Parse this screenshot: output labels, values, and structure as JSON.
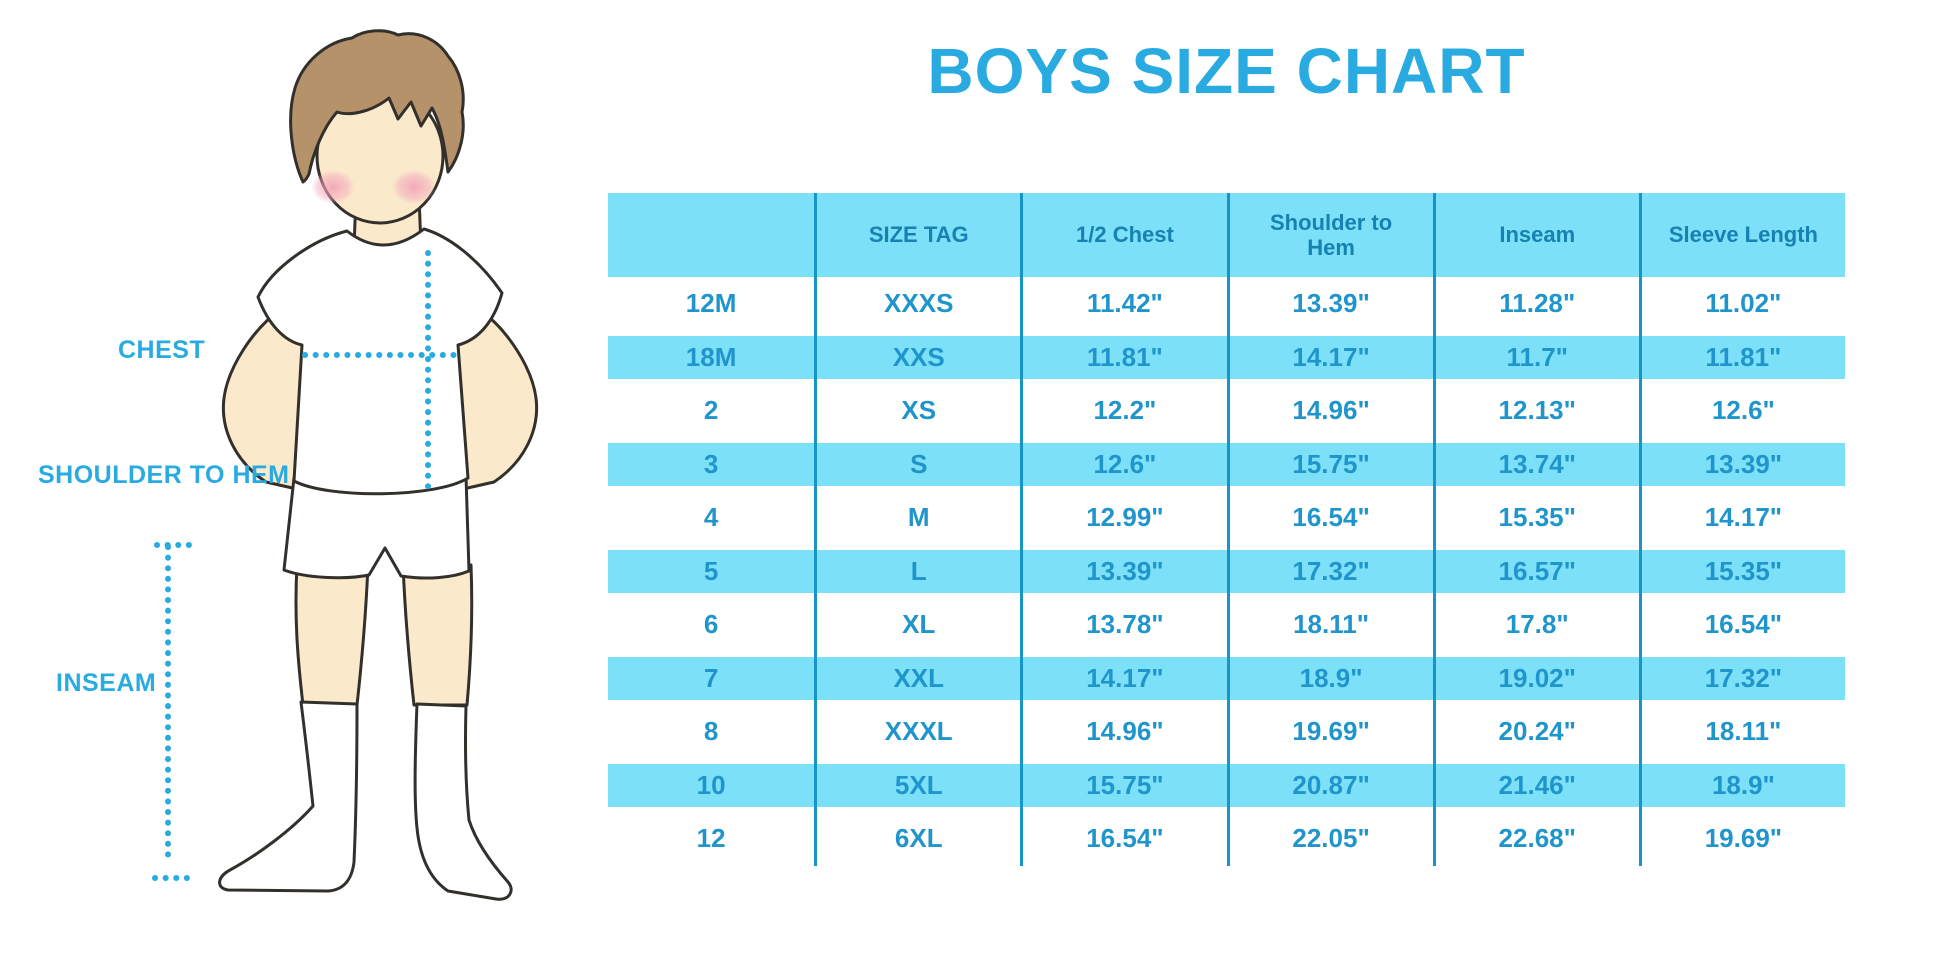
{
  "title": "BOYS SIZE CHART",
  "illustration": {
    "name": "boy-with-measurement-lines",
    "labels": {
      "chest": "CHEST",
      "shoulder_to_hem": "SHOULDER TO HEM",
      "inseam": "INSEAM"
    }
  },
  "chart_data": {
    "type": "table",
    "title": "BOYS SIZE CHART",
    "columns": [
      "",
      "SIZE TAG",
      "1/2 Chest",
      "Shoulder to Hem",
      "Inseam",
      "Sleeve Length"
    ],
    "rows": [
      [
        "12M",
        "XXXS",
        "11.42\"",
        "13.39\"",
        "11.28\"",
        "11.02\""
      ],
      [
        "18M",
        "XXS",
        "11.81\"",
        "14.17\"",
        "11.7\"",
        "11.81\""
      ],
      [
        "2",
        "XS",
        "12.2\"",
        "14.96\"",
        "12.13\"",
        "12.6\""
      ],
      [
        "3",
        "S",
        "12.6\"",
        "15.75\"",
        "13.74\"",
        "13.39\""
      ],
      [
        "4",
        "M",
        "12.99\"",
        "16.54\"",
        "15.35\"",
        "14.17\""
      ],
      [
        "5",
        "L",
        "13.39\"",
        "17.32\"",
        "16.57\"",
        "15.35\""
      ],
      [
        "6",
        "XL",
        "13.78\"",
        "18.11\"",
        "17.8\"",
        "16.54\""
      ],
      [
        "7",
        "XXL",
        "14.17\"",
        "18.9\"",
        "19.02\"",
        "17.32\""
      ],
      [
        "8",
        "XXXL",
        "14.96\"",
        "19.69\"",
        "20.24\"",
        "18.11\""
      ],
      [
        "10",
        "5XL",
        "15.75\"",
        "20.87\"",
        "21.46\"",
        "18.9\""
      ],
      [
        "12",
        "6XL",
        "16.54\"",
        "22.05\"",
        "22.68\"",
        "19.69\""
      ]
    ],
    "annotations": [
      "CHEST",
      "SHOULDER TO HEM",
      "INSEAM"
    ],
    "legend_position": "none",
    "grid": "column-separators-and-alternating-row-stripes"
  },
  "colors": {
    "accent": "#29ABE2",
    "stripe": "#7CE0F8",
    "line": "#1795C8",
    "header-text": "#1781B2",
    "cell-text": "#2095CC",
    "skin": "#FBE9CC",
    "hair": "#B6926B",
    "outline": "#33302C"
  }
}
